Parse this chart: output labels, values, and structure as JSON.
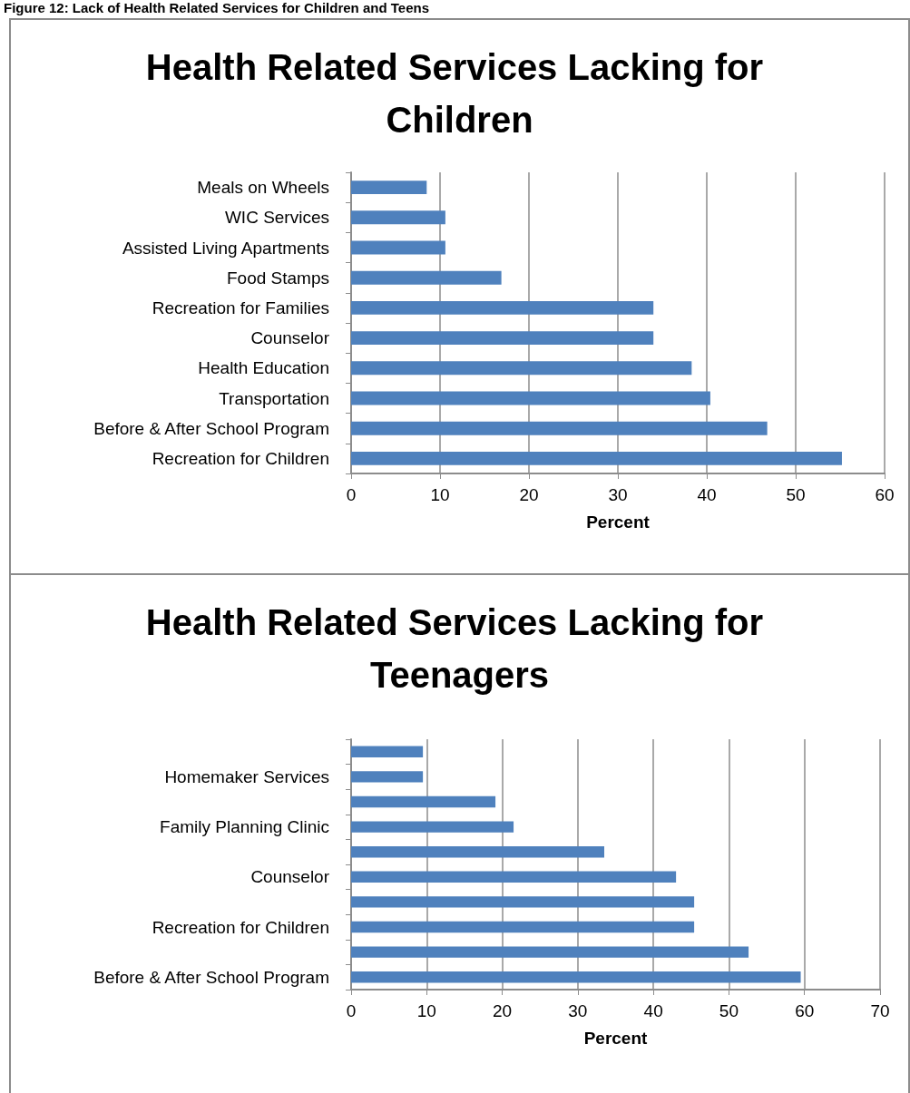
{
  "chart_data": [
    {
      "type": "bar",
      "orientation": "horizontal",
      "title": "Health Related Services Lacking for Children",
      "xlabel": "Percent",
      "annotations": [
        "Figure 12: Lack of Health Related Services for Children and Teens"
      ],
      "categories": [
        "Meals on Wheels",
        "WIC Services",
        "Assisted Living Apartments",
        "Food Stamps",
        "Recreation for Families",
        "Counselor",
        "Health Education",
        "Transportation",
        "Before & After School Program",
        "Recreation for Children"
      ],
      "values": [
        8.5,
        10.6,
        10.6,
        16.9,
        34.0,
        34.0,
        38.3,
        40.4,
        46.8,
        55.2
      ],
      "color": "#4f81bd",
      "xlim": [
        0,
        60
      ],
      "xticks": [
        0,
        10,
        20,
        30,
        40,
        50,
        60
      ],
      "grid": "x"
    },
    {
      "type": "bar",
      "orientation": "horizontal",
      "title": "Health Related Services Lacking for Teenagers",
      "xlabel": "Percent",
      "categories": [
        null,
        "Homemaker Services",
        null,
        "Family Planning Clinic",
        null,
        "Counselor",
        null,
        "Recreation for Children",
        null,
        "Before & After School Program"
      ],
      "values": [
        9.5,
        9.5,
        19.1,
        21.5,
        33.5,
        43.0,
        45.4,
        45.4,
        52.6,
        59.5
      ],
      "color": "#4f81bd",
      "xlim": [
        0,
        70
      ],
      "xticks": [
        0,
        10,
        20,
        30,
        40,
        50,
        60,
        70
      ],
      "grid": "x"
    }
  ]
}
